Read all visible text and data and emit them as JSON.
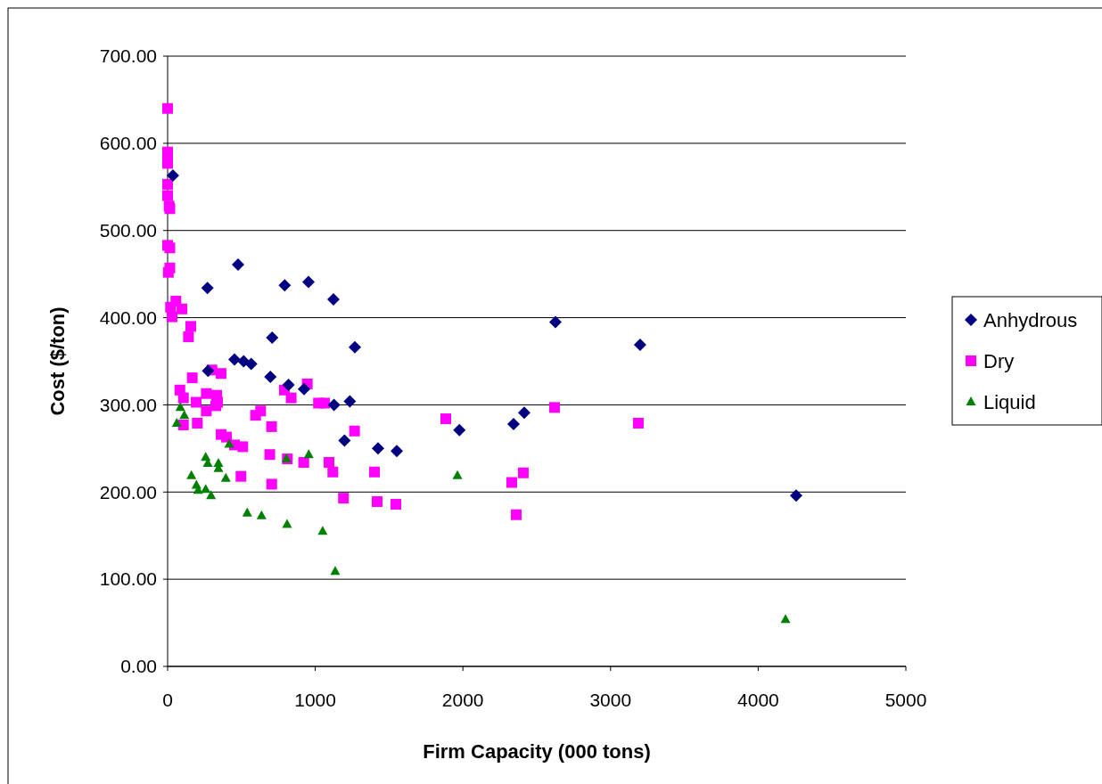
{
  "chart_data": {
    "type": "scatter",
    "xlabel": "Firm Capacity (000 tons)",
    "ylabel": "Cost ($/ton)",
    "xlim": [
      0,
      5000
    ],
    "xticks": [
      0,
      1000,
      2000,
      3000,
      4000,
      5000
    ],
    "ylim": [
      0,
      700
    ],
    "yticks": [
      {
        "value": 0,
        "label": "0.00"
      },
      {
        "value": 100,
        "label": "100.00"
      },
      {
        "value": 200,
        "label": "200.00"
      },
      {
        "value": 300,
        "label": "300.00"
      },
      {
        "value": 400,
        "label": "400.00"
      },
      {
        "value": 500,
        "label": "500.00"
      },
      {
        "value": 600,
        "label": "600.00"
      },
      {
        "value": 700,
        "label": "700.00"
      }
    ],
    "grid": "y",
    "legend": "right",
    "series": [
      {
        "name": "Anhydrous",
        "color": "#000080",
        "marker": "diamond",
        "x": [
          36,
          270,
          477,
          793,
          954,
          1123,
          708,
          1268,
          274,
          453,
          515,
          566,
          696,
          819,
          924,
          1127,
          1234,
          1198,
          1425,
          1552,
          1976,
          2343,
          2415,
          2627,
          3200,
          4257
        ],
        "values": [
          563,
          434,
          461,
          437,
          441,
          421,
          377,
          366,
          339,
          352,
          350,
          347,
          332,
          323,
          318,
          300,
          304,
          259,
          250,
          247,
          271,
          278,
          291,
          395,
          369,
          196
        ]
      },
      {
        "name": "Dry",
        "color": "#ff00ff",
        "marker": "square",
        "x": [
          0,
          0,
          0,
          0,
          0,
          0,
          10,
          15,
          0,
          15,
          15,
          5,
          56,
          97,
          20,
          30,
          157,
          141,
          167,
          300,
          362,
          83,
          107,
          193,
          262,
          332,
          338,
          262,
          326,
          107,
          201,
          362,
          399,
          453,
          509,
          596,
          630,
          704,
          791,
          837,
          946,
          1022,
          1063,
          1266,
          692,
          811,
          922,
          1093,
          1119,
          497,
          705,
          1191,
          1401,
          1419,
          1546,
          1884,
          2331,
          2361,
          2409,
          2621,
          3188
        ],
        "values": [
          640,
          590,
          584,
          577,
          553,
          540,
          528,
          525,
          483,
          480,
          457,
          452,
          419,
          410,
          412,
          401,
          390,
          378,
          331,
          340,
          336,
          317,
          308,
          303,
          313,
          311,
          303,
          293,
          299,
          277,
          279,
          266,
          263,
          254,
          252,
          288,
          293,
          275,
          317,
          308,
          324,
          302,
          302,
          270,
          243,
          238,
          234,
          234,
          223,
          218,
          209,
          193,
          223,
          189,
          186,
          284,
          211,
          174,
          222,
          297,
          279
        ]
      },
      {
        "name": "Liquid",
        "color": "#008000",
        "marker": "triangle",
        "x": [
          86,
          113,
          62,
          417,
          258,
          272,
          344,
          344,
          394,
          161,
          195,
          207,
          258,
          294,
          805,
          956,
          539,
          636,
          809,
          1050,
          1135,
          1963,
          4185
        ],
        "values": [
          297,
          288,
          279,
          255,
          240,
          233,
          233,
          227,
          216,
          219,
          208,
          202,
          203,
          196,
          238,
          243,
          176,
          173,
          163,
          155,
          109,
          219,
          54
        ]
      }
    ]
  }
}
